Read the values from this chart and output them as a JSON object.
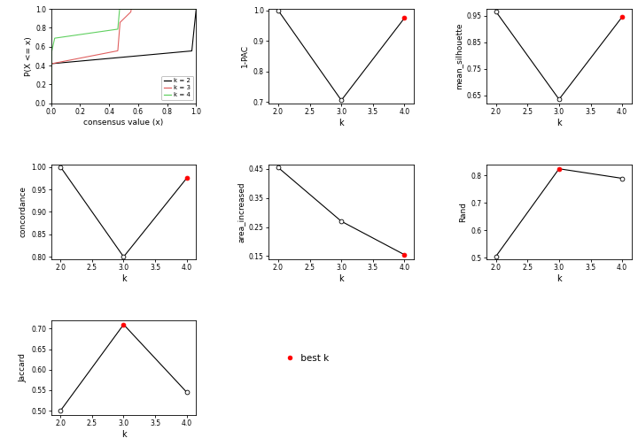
{
  "k_values": [
    2,
    3,
    4
  ],
  "pac_1minus": [
    1.0,
    0.705,
    0.975
  ],
  "pac_min_idx": 1,
  "pac_best_idx": 2,
  "mean_silhouette": [
    0.965,
    0.635,
    0.945
  ],
  "sil_min_idx": 1,
  "sil_best_idx": 2,
  "concordance": [
    1.0,
    0.8,
    0.975
  ],
  "conc_min_idx": 1,
  "conc_best_idx": 2,
  "area_increased": [
    0.455,
    0.27,
    0.155
  ],
  "area_min_idx": 2,
  "area_best_idx": 2,
  "rand": [
    0.505,
    0.825,
    0.79
  ],
  "rand_min_idx": 0,
  "rand_best_idx": 1,
  "jaccard": [
    0.5,
    0.71,
    0.545
  ],
  "jacc_min_idx": 0,
  "jacc_best_idx": 1,
  "open_circle_color": "white",
  "best_color": "red",
  "line_color": "black",
  "k2_color": "black",
  "k3_color": "#e06060",
  "k4_color": "#60d060",
  "cdf_xlabel": "consensus value (x)",
  "cdf_ylabel": "P(X <= x)",
  "pac_ylabel": "1-PAC",
  "sil_ylabel": "mean_silhouette",
  "conc_ylabel": "concordance",
  "area_ylabel": "area_increased",
  "rand_ylabel": "Rand",
  "jacc_ylabel": "Jaccard",
  "k_xlabel": "k"
}
